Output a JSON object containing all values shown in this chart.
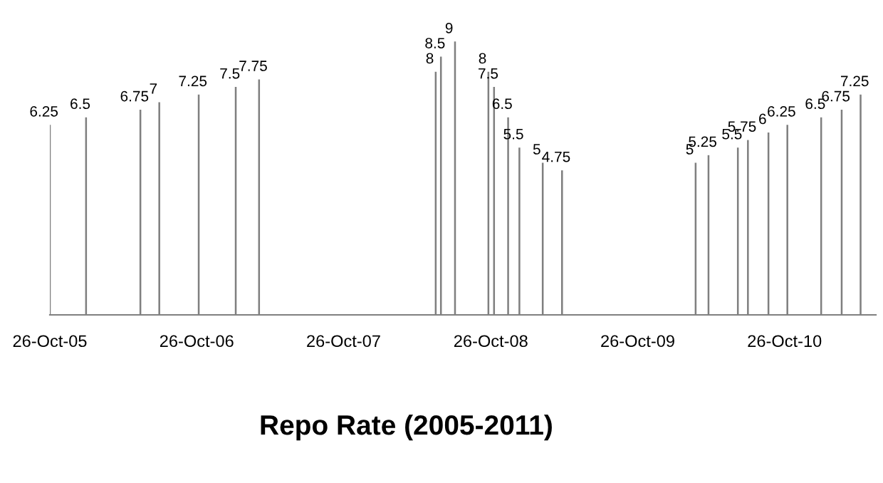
{
  "chart_data": {
    "type": "bar",
    "title": "Repo Rate (2005-2011)",
    "x": [
      "2005-10-26",
      "2006-01-24",
      "2006-06-08",
      "2006-07-25",
      "2006-10-31",
      "2007-01-31",
      "2007-03-30",
      "2008-06-11",
      "2008-06-24",
      "2008-07-29",
      "2008-10-20",
      "2008-11-03",
      "2008-12-08",
      "2009-01-05",
      "2009-03-04",
      "2009-04-21",
      "2010-03-19",
      "2010-04-20",
      "2010-07-02",
      "2010-07-27",
      "2010-09-16",
      "2010-11-02",
      "2011-01-25",
      "2011-03-17",
      "2011-05-03"
    ],
    "values": [
      6.25,
      6.5,
      6.75,
      7,
      7.25,
      7.5,
      7.75,
      8,
      8.5,
      9,
      8,
      7.5,
      6.5,
      5.5,
      5,
      4.75,
      5,
      5.25,
      5.5,
      5.75,
      6,
      6.25,
      6.5,
      6.75,
      7.25
    ],
    "color": "#7f7f7f",
    "data_labels": true,
    "xlim": [
      "2005-10-26",
      "2011-06-10"
    ],
    "xticks": [
      {
        "value": "2005-10-26",
        "label": "26-Oct-05"
      },
      {
        "value": "2006-10-26",
        "label": "26-Oct-06"
      },
      {
        "value": "2007-10-26",
        "label": "26-Oct-07"
      },
      {
        "value": "2008-10-26",
        "label": "26-Oct-08"
      },
      {
        "value": "2009-10-26",
        "label": "26-Oct-09"
      },
      {
        "value": "2010-10-26",
        "label": "26-Oct-10"
      }
    ],
    "tick_labels": "x",
    "grid": false,
    "legend": false
  }
}
